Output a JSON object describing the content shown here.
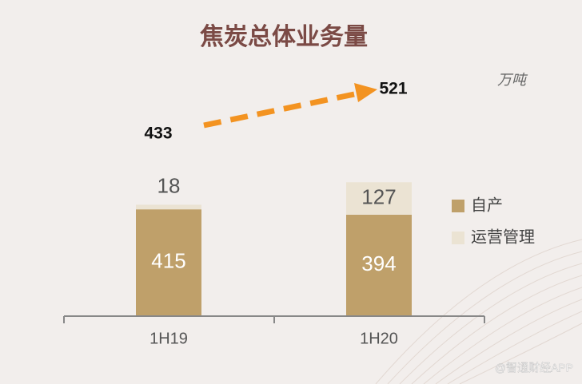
{
  "chart_data": {
    "type": "stacked_bar",
    "title": "焦炭总体业务量",
    "unit": "万吨",
    "categories": [
      "1H19",
      "1H20"
    ],
    "series": [
      {
        "name": "自产",
        "color": "#bfa06a",
        "values": [
          415,
          394
        ]
      },
      {
        "name": "运营管理",
        "color": "#ebe3d3",
        "values": [
          18,
          127
        ]
      }
    ],
    "totals": [
      433,
      521
    ],
    "trend_color": "#f39321",
    "watermark": "@智通财经APP"
  }
}
